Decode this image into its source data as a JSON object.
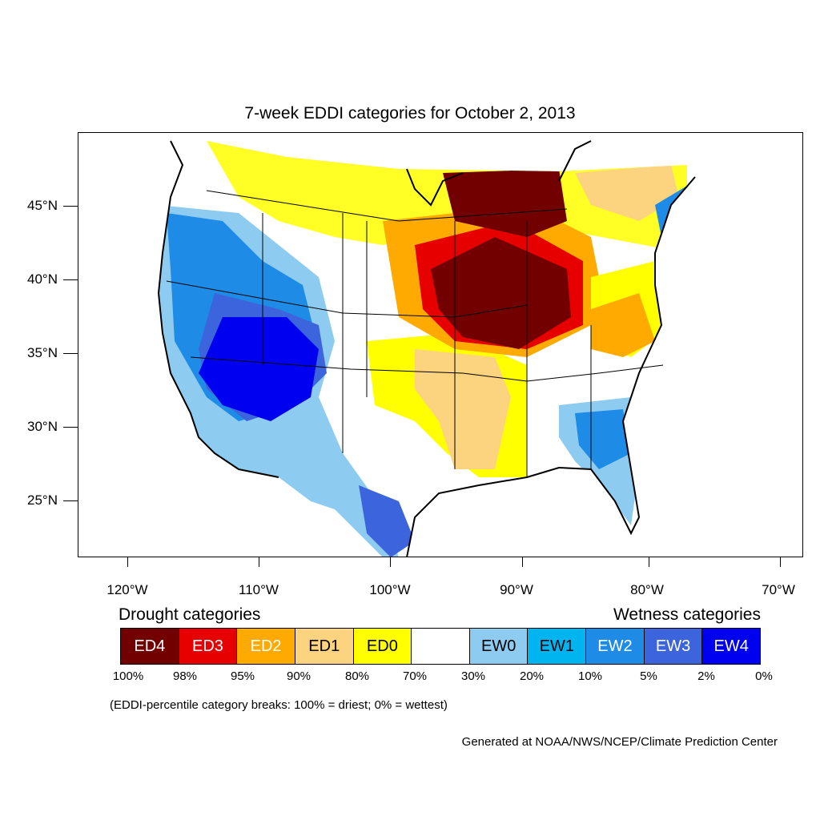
{
  "title": "7-week EDDI categories for October 2, 2013",
  "lat_labels": [
    "45°N",
    "40°N",
    "35°N",
    "30°N",
    "25°N"
  ],
  "lon_labels": [
    "120°W",
    "110°W",
    "100°W",
    "90°W",
    "80°W",
    "70°W"
  ],
  "legend": {
    "drought_heading": "Drought categories",
    "wetness_heading": "Wetness categories",
    "categories": [
      {
        "label": "ED4",
        "color": "#730000",
        "text_color": "#ffffff"
      },
      {
        "label": "ED3",
        "color": "#e60000",
        "text_color": "#ffffff"
      },
      {
        "label": "ED2",
        "color": "#ffaa00",
        "text_color": "#ffffff"
      },
      {
        "label": "ED1",
        "color": "#fcd37f",
        "text_color": "#000000"
      },
      {
        "label": "ED0",
        "color": "#ffff00",
        "text_color": "#000000"
      },
      {
        "label": "",
        "color": "#ffffff",
        "text_color": "#000000"
      },
      {
        "label": "EW0",
        "color": "#8ecbf0",
        "text_color": "#000000"
      },
      {
        "label": "EW1",
        "color": "#00b4f0",
        "text_color": "#000000"
      },
      {
        "label": "EW2",
        "color": "#1e8ce6",
        "text_color": "#ffffff"
      },
      {
        "label": "EW3",
        "color": "#3c64dc",
        "text_color": "#ffffff"
      },
      {
        "label": "EW4",
        "color": "#0000f0",
        "text_color": "#ffffff"
      }
    ],
    "percentiles": [
      "100%",
      "98%",
      "95%",
      "90%",
      "80%",
      "70%",
      "30%",
      "20%",
      "10%",
      "5%",
      "2%",
      "0%"
    ]
  },
  "note": "(EDDI-percentile category breaks: 100% = driest; 0% = wettest)",
  "credit": "Generated at NOAA/NWS/NCEP/Climate Prediction Center"
}
